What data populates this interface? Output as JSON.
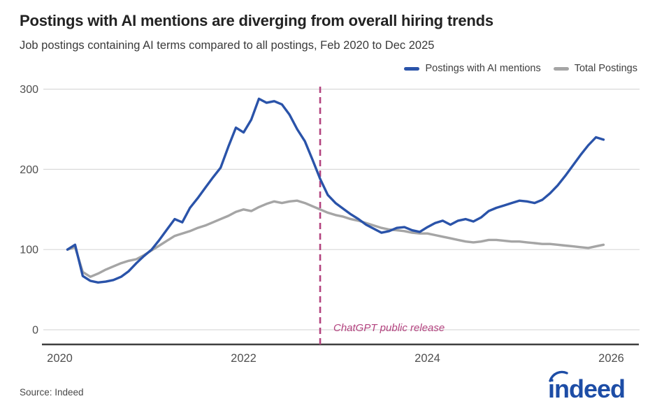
{
  "header": {
    "title": "Postings with AI mentions are diverging from overall hiring trends",
    "subtitle": "Job postings containing AI terms compared to all postings, Feb 2020 to Dec 2025"
  },
  "legend": [
    {
      "label": "Postings with AI mentions",
      "color": "#2a53a9"
    },
    {
      "label": "Total Postings",
      "color": "#a5a5a5"
    }
  ],
  "footer": {
    "source": "Source: Indeed",
    "logo_text": "indeed",
    "logo_color": "#1d4da6"
  },
  "colors": {
    "grid": "#d9d9d9",
    "axis": "#3f3f3f",
    "tick_text": "#4f4f4f",
    "annotation": "#b3437f"
  },
  "chart_data": {
    "type": "line",
    "title": "Postings with AI mentions are diverging from overall hiring trends",
    "subtitle": "Job postings containing AI terms compared to all postings, Feb 2020 to Dec 2025",
    "x_unit": "month",
    "x_start_month": "2020-02",
    "x_end_month": "2025-12",
    "index_base": 100,
    "ylim": [
      0,
      300
    ],
    "yticks": [
      0,
      100,
      200,
      300
    ],
    "xticks": [
      2020,
      2022,
      2024,
      2026
    ],
    "grid": true,
    "legend_position": "top-right",
    "annotation": {
      "label": "ChatGPT public release",
      "t": 2022.833
    },
    "series": [
      {
        "name": "Total Postings",
        "color": "#a5a5a5",
        "values": [
          100,
          103,
          72,
          66,
          70,
          75,
          79,
          83,
          86,
          88,
          93,
          99,
          105,
          111,
          117,
          120,
          123,
          127,
          130,
          134,
          138,
          142,
          147,
          150,
          148,
          153,
          157,
          160,
          158,
          160,
          161,
          158,
          154,
          150,
          146,
          143,
          141,
          138,
          136,
          133,
          130,
          127,
          125,
          124,
          123,
          121,
          120,
          120,
          118,
          116,
          114,
          112,
          110,
          109,
          110,
          112,
          112,
          111,
          110,
          110,
          109,
          108,
          107,
          107,
          106,
          105,
          104,
          103,
          102,
          104,
          106
        ]
      },
      {
        "name": "Postings with AI mentions",
        "color": "#2a53a9",
        "values": [
          100,
          106,
          67,
          61,
          59,
          60,
          62,
          66,
          73,
          83,
          92,
          100,
          112,
          125,
          138,
          134,
          152,
          164,
          177,
          190,
          202,
          228,
          252,
          246,
          262,
          288,
          283,
          285,
          281,
          268,
          250,
          235,
          212,
          188,
          168,
          158,
          151,
          144,
          138,
          131,
          126,
          121,
          123,
          127,
          128,
          124,
          122,
          128,
          133,
          136,
          131,
          136,
          138,
          135,
          140,
          148,
          152,
          155,
          158,
          161,
          160,
          158,
          162,
          170,
          180,
          192,
          205,
          218,
          230,
          240,
          237
        ]
      }
    ]
  }
}
